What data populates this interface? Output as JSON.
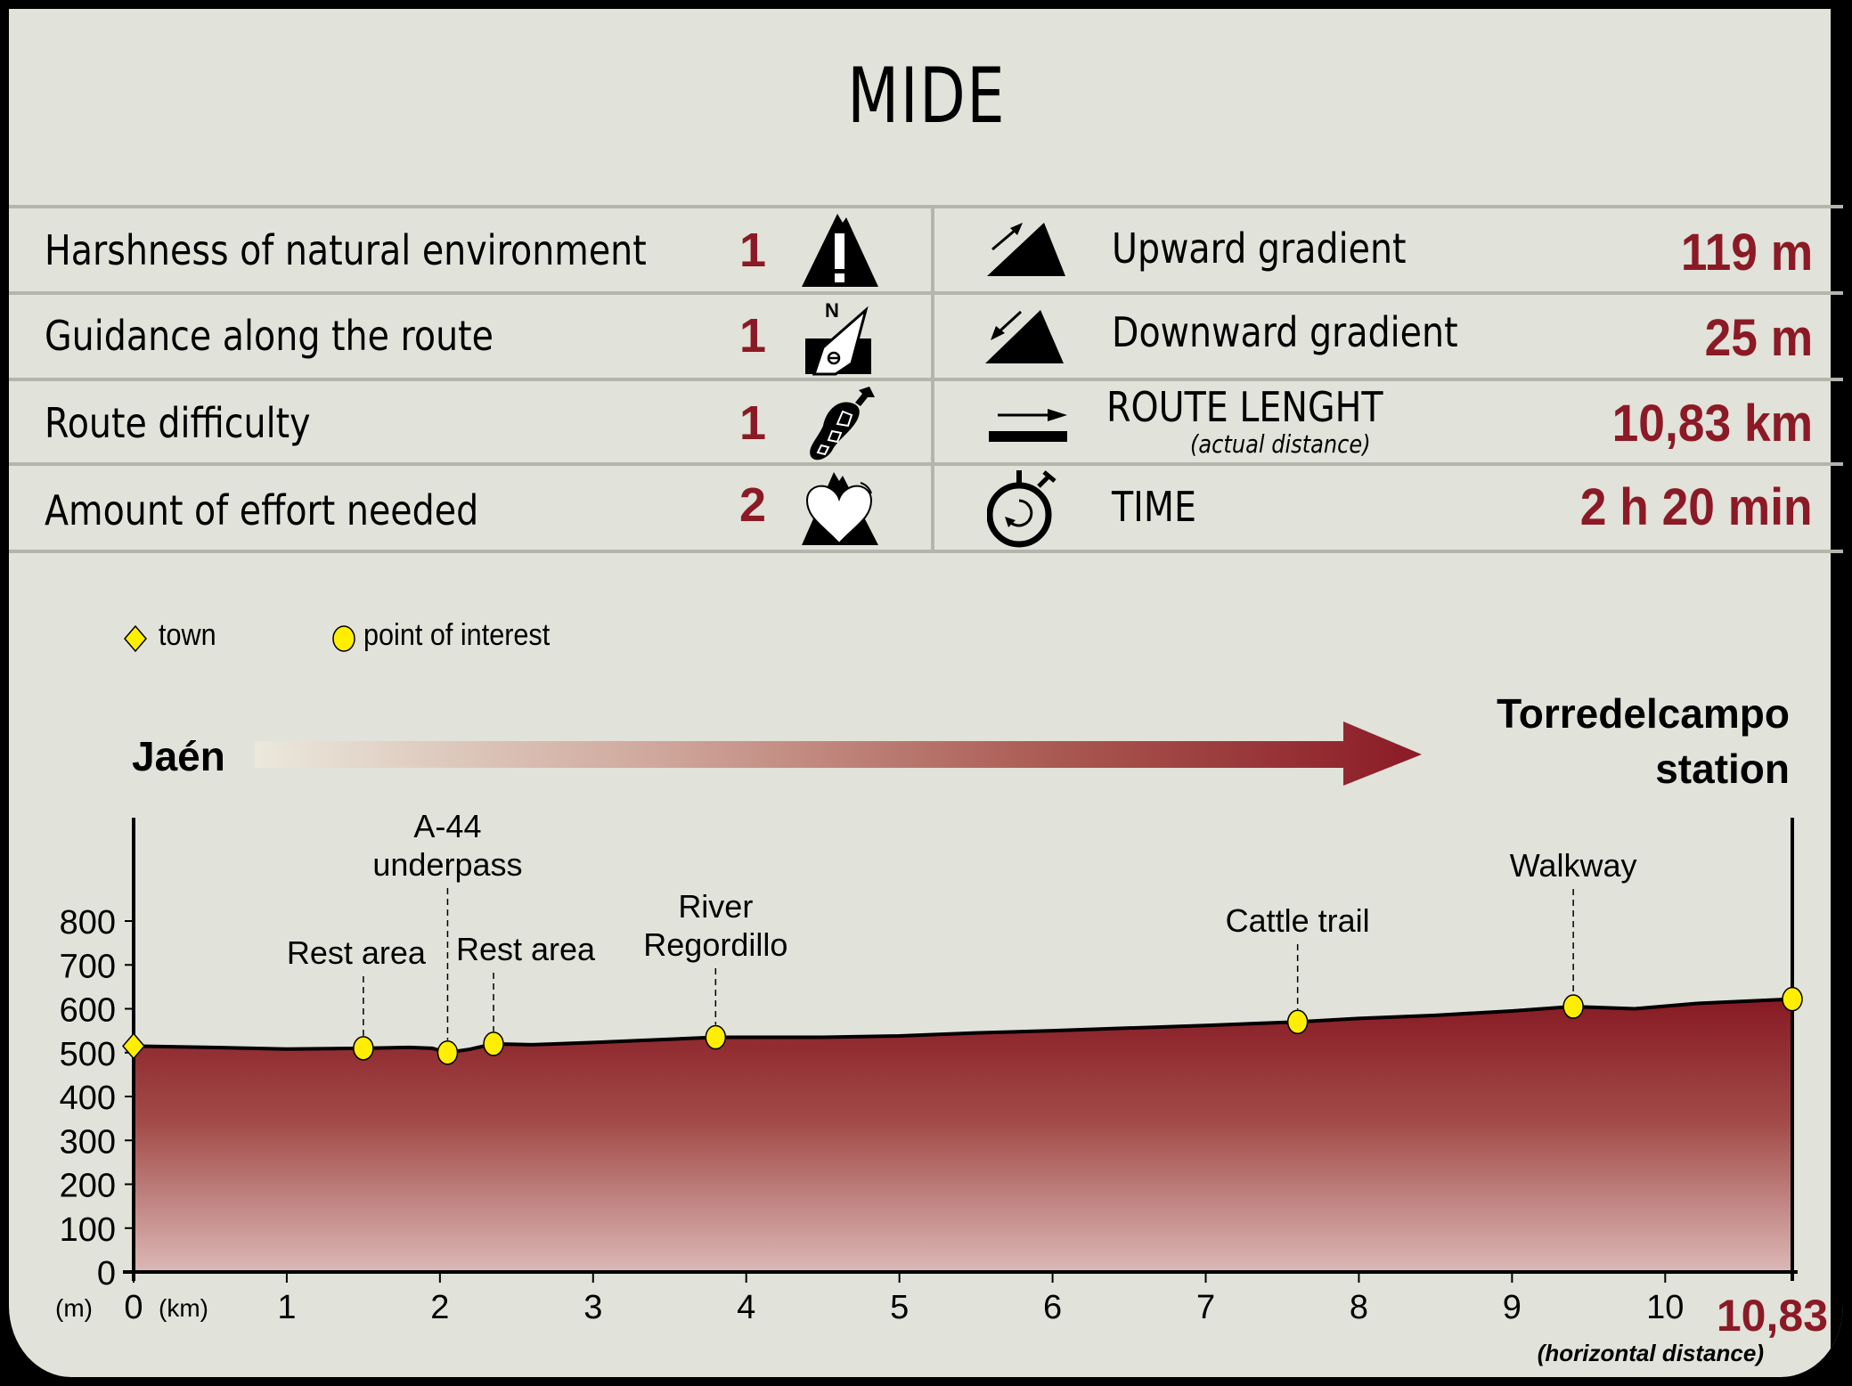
{
  "header": {
    "title": "MIDE"
  },
  "mide": {
    "left": [
      {
        "label": "Harshness of natural environment",
        "value": "1",
        "icon": "mountain-warning-icon"
      },
      {
        "label": "Guidance along the route",
        "value": "1",
        "icon": "compass-icon"
      },
      {
        "label": "Route difficulty",
        "value": "1",
        "icon": "boot-sole-icon"
      },
      {
        "label": "Amount of effort needed",
        "value": "2",
        "icon": "heart-mountain-icon"
      }
    ],
    "right": [
      {
        "label": "Upward gradient",
        "sublabel": "",
        "value": "119 m",
        "icon": "upward-gradient-icon"
      },
      {
        "label": "Downward gradient",
        "sublabel": "",
        "value": "25 m",
        "icon": "downward-gradient-icon"
      },
      {
        "label": "ROUTE LENGHT",
        "sublabel": "(actual distance)",
        "value": "10,83 km",
        "icon": "route-length-icon"
      },
      {
        "label": "TIME",
        "sublabel": "",
        "value": "2 h 20 min",
        "icon": "stopwatch-icon"
      }
    ]
  },
  "legend": {
    "town": "town",
    "poi": "point of interest"
  },
  "route": {
    "start": "Jaén",
    "end_line1": "Torredelcampo",
    "end_line2": "station"
  },
  "colors": {
    "accent": "#8b1a26",
    "panel": "#e1e2d9",
    "marker": "#ffee00",
    "separator": "#b4b5ad"
  },
  "chart_data": {
    "type": "area",
    "title": "Elevation profile",
    "xlabel": "(km)",
    "ylabel": "(m)",
    "x_end_label": "10,83",
    "x_note": "(horizontal distance)",
    "xlim": [
      0,
      10.83
    ],
    "ylim": [
      0,
      800
    ],
    "x_ticks": [
      "0",
      "1",
      "2",
      "3",
      "4",
      "5",
      "6",
      "7",
      "8",
      "9",
      "10"
    ],
    "y_ticks": [
      "0",
      "100",
      "200",
      "300",
      "400",
      "500",
      "600",
      "700",
      "800"
    ],
    "grid": false,
    "profile": {
      "x": [
        0,
        0.5,
        1.0,
        1.5,
        1.8,
        1.95,
        2.05,
        2.2,
        2.35,
        2.6,
        3.0,
        3.8,
        4.5,
        5.0,
        5.5,
        6.0,
        6.5,
        7.0,
        7.6,
        8.0,
        8.5,
        9.0,
        9.4,
        9.8,
        10.2,
        10.83
      ],
      "y": [
        515,
        512,
        508,
        510,
        512,
        510,
        500,
        508,
        520,
        518,
        523,
        535,
        535,
        538,
        545,
        550,
        556,
        562,
        570,
        578,
        585,
        595,
        605,
        600,
        612,
        622
      ]
    },
    "points": [
      {
        "name": "Jaén",
        "type": "town",
        "x": 0,
        "y": 515,
        "label": ""
      },
      {
        "name": "Rest area",
        "type": "poi",
        "x": 1.5,
        "y": 510,
        "label_lines": [
          "Rest area"
        ]
      },
      {
        "name": "A-44 underpass",
        "type": "poi",
        "x": 2.05,
        "y": 500,
        "label_lines": [
          "A-44",
          "underpass"
        ]
      },
      {
        "name": "Rest area",
        "type": "poi",
        "x": 2.35,
        "y": 520,
        "label_lines": [
          "Rest area"
        ]
      },
      {
        "name": "River Regordillo",
        "type": "poi",
        "x": 3.8,
        "y": 535,
        "label_lines": [
          "River",
          "Regordillo"
        ]
      },
      {
        "name": "Cattle trail",
        "type": "poi",
        "x": 7.6,
        "y": 570,
        "label_lines": [
          "Cattle trail"
        ]
      },
      {
        "name": "Walkway",
        "type": "poi",
        "x": 9.4,
        "y": 605,
        "label_lines": [
          "Walkway"
        ]
      },
      {
        "name": "Torredelcampo station",
        "type": "poi",
        "x": 10.83,
        "y": 622,
        "label_lines": []
      }
    ]
  }
}
